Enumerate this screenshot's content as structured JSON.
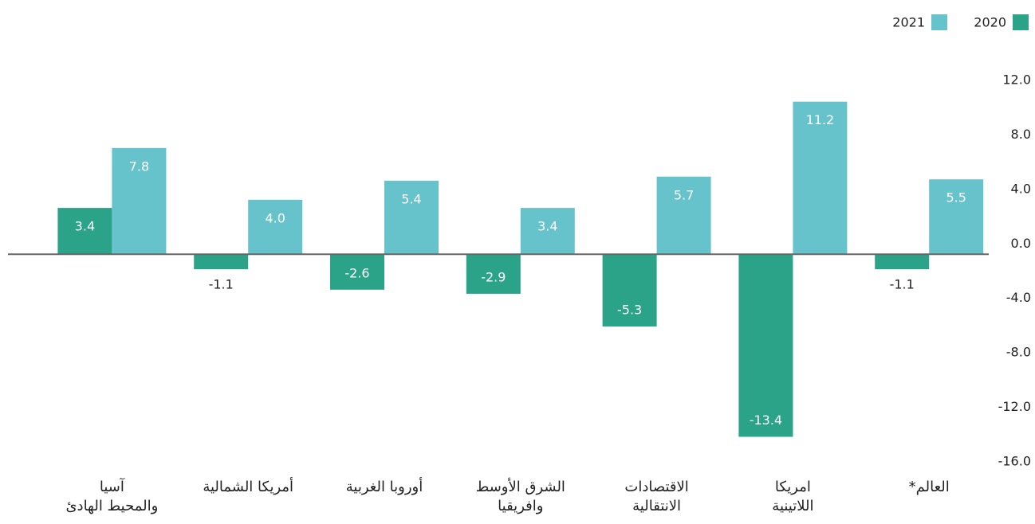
{
  "chart_data": {
    "type": "bar",
    "categories": [
      "آسيا\nوالمحيط الهادئ",
      "أمريكا الشمالية",
      "أوروبا الغربية",
      "الشرق الأوسط\nوافريقيا",
      "الاقتصادات\nالانتقالية",
      "امريكا\nاللاتينية",
      "العالم*"
    ],
    "series": [
      {
        "name": "2020",
        "color": "#2aa389",
        "values": [
          3.4,
          -1.1,
          -2.6,
          -2.9,
          -5.3,
          -13.4,
          -1.1
        ],
        "value_labels": [
          "3.4",
          "-1.1",
          "-2.6",
          "-2.9",
          "-5.3",
          "-13.4",
          "-1.1"
        ]
      },
      {
        "name": "2021",
        "color": "#66c3cc",
        "values": [
          7.8,
          4.0,
          5.4,
          3.4,
          5.7,
          11.2,
          5.5
        ],
        "value_labels": [
          "7.8",
          "4.0",
          "5.4",
          "3.4",
          "5.7",
          "11.2",
          "5.5"
        ]
      }
    ],
    "ylim": [
      -16,
      12
    ],
    "yticks": [
      {
        "value": 12,
        "label": "12.0"
      },
      {
        "value": 8,
        "label": "8.0"
      },
      {
        "value": 4,
        "label": "4.0"
      },
      {
        "value": 0,
        "label": "0.0"
      },
      {
        "value": -4,
        "label": "-4.0"
      },
      {
        "value": -8,
        "label": "-8.0"
      },
      {
        "value": -12,
        "label": "-12.0"
      },
      {
        "value": -16,
        "label": "-16.0"
      }
    ],
    "legend": "top-right"
  }
}
